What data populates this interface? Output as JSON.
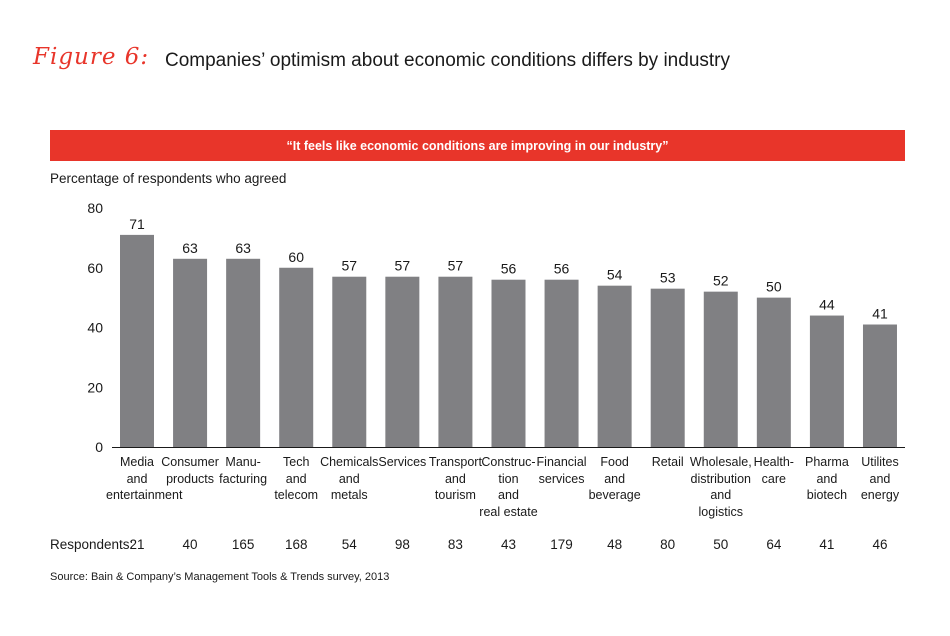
{
  "header": {
    "figure_label": "Figure 6:",
    "title": "Companies’ optimism about economic conditions differs by industry"
  },
  "banner": {
    "text": "“It feels like economic conditions are improving in our industry”"
  },
  "respondents_label": "Respondents:",
  "respondents": [
    "21",
    "40",
    "165",
    "168",
    "54",
    "98",
    "83",
    "43",
    "179",
    "48",
    "80",
    "50",
    "64",
    "41",
    "46"
  ],
  "footer": {
    "source": "Source: Bain & Company’s Management Tools & Trends survey, 2013"
  },
  "colors": {
    "accent": "#e8352a",
    "bar": "#808083"
  },
  "chart_data": {
    "type": "bar",
    "title": "",
    "ylabel": "Percentage of respondents who agreed",
    "xlabel": "",
    "ylim": [
      0,
      80
    ],
    "yticks": [
      0,
      20,
      40,
      60,
      80
    ],
    "categories": [
      "Media\nand\nentertainment",
      "Consumer\nproducts",
      "Manu-\nfacturing",
      "Tech\nand\ntelecom",
      "Chemicals\nand\nmetals",
      "Services",
      "Transport\nand\ntourism",
      "Construc-\ntion\nand\nreal estate",
      "Financial\nservices",
      "Food\nand\nbeverage",
      "Retail",
      "Wholesale,\ndistribution\nand logistics",
      "Health-\ncare",
      "Pharma\nand\nbiotech",
      "Utilites\nand\nenergy"
    ],
    "values": [
      71,
      63,
      63,
      60,
      57,
      57,
      57,
      56,
      56,
      54,
      53,
      52,
      50,
      44,
      41
    ]
  }
}
